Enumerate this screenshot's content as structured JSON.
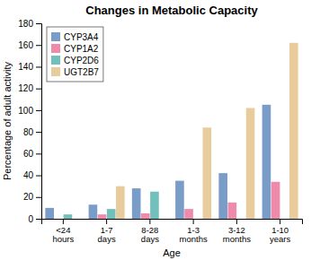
{
  "chart_data": {
    "type": "bar",
    "title": "Changes in Metabolic Capacity",
    "xlabel": "Age",
    "ylabel": "Percentage of adult activity",
    "categories": [
      "<24\nhours",
      "1-7\ndays",
      "8-28\ndays",
      "1-3\nmonths",
      "3-12\nmonths",
      "1-10\nyears"
    ],
    "series": [
      {
        "name": "CYP3A4",
        "color": "#7a9cc8",
        "values": [
          10,
          13,
          28,
          35,
          42,
          105
        ]
      },
      {
        "name": "CYP1A2",
        "color": "#f08aaa",
        "values": [
          0,
          4,
          5,
          9,
          15,
          34
        ]
      },
      {
        "name": "CYP2D6",
        "color": "#72c0bc",
        "values": [
          4,
          9,
          25,
          0,
          0,
          0
        ]
      },
      {
        "name": "UGT2B7",
        "color": "#e8cc9e",
        "values": [
          0,
          30,
          0,
          84,
          102,
          162
        ]
      }
    ],
    "ylim": [
      0,
      180
    ],
    "yticks": [
      0,
      20,
      40,
      60,
      80,
      100,
      120,
      140,
      160,
      180
    ],
    "grid": false,
    "legend": "upper left"
  }
}
